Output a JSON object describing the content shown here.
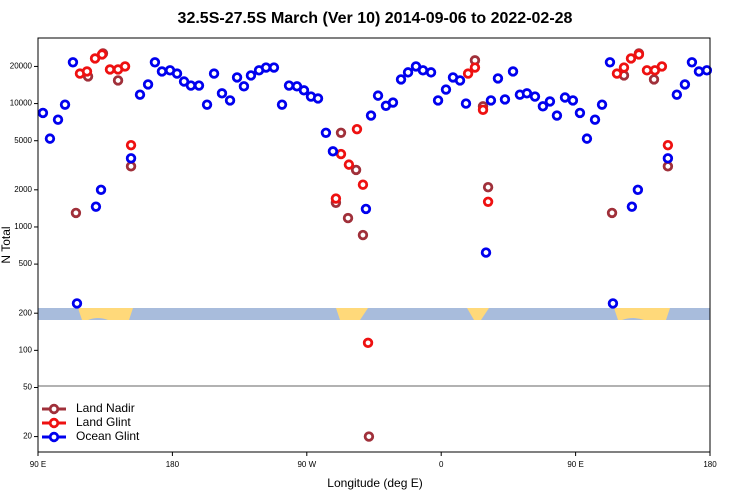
{
  "chart_data": {
    "type": "scatter",
    "title": "32.5S-27.5S March (Ver 10)   2014-09-06 to 2022-02-28",
    "xlabel": "Longitude (deg E)",
    "ylabel": "N Total",
    "xlim": [
      90,
      540
    ],
    "xticks": [
      {
        "value": 90,
        "label": "90 E"
      },
      {
        "value": 180,
        "label": "180"
      },
      {
        "value": 270,
        "label": "90 W"
      },
      {
        "value": 360,
        "label": "0"
      },
      {
        "value": 450,
        "label": "90 E"
      },
      {
        "value": 540,
        "label": "180"
      }
    ],
    "ylim": [
      15,
      34000
    ],
    "ylog": true,
    "yticks": [
      20,
      50,
      100,
      200,
      500,
      1000,
      2000,
      5000,
      10000,
      20000
    ],
    "legend": "lower left",
    "series": [
      {
        "name": "Land Nadir",
        "color": "#a0303a",
        "x": [
          115.4,
          123.5,
          133.5,
          143.6,
          152.3,
          289.5,
          292.9,
          297.6,
          303.0,
          307.6,
          311.6,
          382.6,
          388.0,
          391.4,
          474.4,
          482.4,
          492.4,
          502.5,
          511.8
        ],
        "values": [
          1300,
          16600,
          25500,
          15400,
          3100,
          1570,
          5800,
          1180,
          2900,
          860,
          20,
          22400,
          9500,
          2100,
          1300,
          16900,
          25500,
          15700,
          3100
        ]
      },
      {
        "name": "Land Glint",
        "color": "#ee1111",
        "x": [
          118.1,
          122.8,
          128.2,
          132.9,
          138.2,
          143.6,
          148.3,
          152.3,
          289.5,
          292.9,
          298.2,
          303.6,
          307.6,
          311.0,
          378.0,
          382.6,
          388.0,
          391.4,
          477.7,
          482.4,
          487.1,
          492.4,
          497.8,
          503.1,
          507.8,
          511.8
        ],
        "values": [
          17500,
          18200,
          23200,
          25000,
          18900,
          18900,
          20000,
          4600,
          1700,
          3900,
          3200,
          6200,
          2200,
          115,
          17500,
          19600,
          8900,
          1600,
          17500,
          19600,
          23200,
          25000,
          18600,
          18600,
          20000,
          4600
        ]
      },
      {
        "name": "Ocean Glint",
        "color": "#0000ee",
        "x": [
          93.3,
          98.0,
          103.4,
          108.1,
          113.4,
          116.1,
          128.8,
          132.2,
          152.3,
          158.3,
          163.7,
          168.3,
          173.0,
          178.4,
          183.1,
          187.8,
          192.4,
          197.8,
          203.2,
          207.9,
          213.2,
          218.6,
          223.3,
          227.9,
          232.6,
          238.0,
          242.7,
          248.0,
          253.4,
          258.1,
          263.4,
          268.1,
          272.8,
          277.5,
          282.8,
          287.5,
          309.6,
          313.0,
          317.7,
          323.0,
          327.7,
          333.1,
          337.8,
          343.1,
          347.8,
          353.2,
          357.9,
          363.2,
          367.9,
          372.6,
          376.6,
          390.0,
          393.3,
          398.0,
          402.7,
          408.1,
          412.7,
          417.4,
          422.8,
          428.1,
          432.8,
          437.5,
          442.9,
          448.2,
          452.9,
          457.6,
          463.0,
          467.7,
          473.0,
          475.0,
          487.7,
          491.7,
          511.8,
          517.8,
          523.2,
          527.9,
          532.6,
          537.9
        ],
        "values": [
          8400,
          5200,
          7400,
          9800,
          21600,
          240,
          1460,
          2000,
          3600,
          11800,
          14300,
          21600,
          18200,
          18600,
          17500,
          15100,
          14000,
          14000,
          9800,
          17500,
          12100,
          10600,
          16300,
          13800,
          16900,
          18600,
          19600,
          19600,
          9800,
          14000,
          13800,
          12800,
          11400,
          11000,
          5800,
          4100,
          1400,
          8000,
          11600,
          9600,
          10200,
          15700,
          17900,
          20000,
          18600,
          17900,
          10600,
          13000,
          16300,
          15400,
          10000,
          620,
          10600,
          16000,
          10800,
          18200,
          11800,
          12100,
          11400,
          9500,
          10400,
          8000,
          11200,
          10600,
          8400,
          5200,
          7400,
          9800,
          21600,
          240,
          1460,
          2000,
          3600,
          11800,
          14300,
          21600,
          18200,
          18600
        ]
      }
    ]
  }
}
